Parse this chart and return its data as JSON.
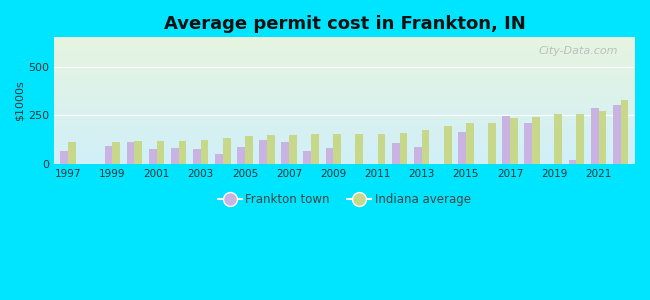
{
  "title": "Average permit cost in Frankton, IN",
  "ylabel": "$1000s",
  "years": [
    1997,
    1998,
    1999,
    2000,
    2001,
    2002,
    2003,
    2004,
    2005,
    2006,
    2007,
    2008,
    2009,
    2010,
    2011,
    2012,
    2013,
    2014,
    2015,
    2016,
    2017,
    2018,
    2019,
    2020,
    2021,
    2022
  ],
  "frankton": [
    65,
    0,
    90,
    110,
    75,
    80,
    75,
    50,
    85,
    125,
    110,
    65,
    80,
    0,
    0,
    105,
    85,
    0,
    165,
    0,
    245,
    210,
    0,
    20,
    285,
    305
  ],
  "indiana": [
    110,
    0,
    110,
    120,
    115,
    115,
    125,
    135,
    145,
    150,
    150,
    155,
    155,
    155,
    155,
    160,
    175,
    195,
    210,
    210,
    235,
    240,
    255,
    255,
    270,
    330
  ],
  "frankton_color": "#c9b3e3",
  "indiana_color": "#c8d88a",
  "bg_outer": "#00e5ff",
  "bg_top_color": "#e6f4df",
  "bg_bottom_color": "#d0eff8",
  "title_fontsize": 13,
  "ylim": [
    0,
    650
  ],
  "yticks": [
    0,
    250,
    500
  ],
  "legend_frankton": "Frankton town",
  "legend_indiana": "Indiana average",
  "watermark": "City-Data.com"
}
